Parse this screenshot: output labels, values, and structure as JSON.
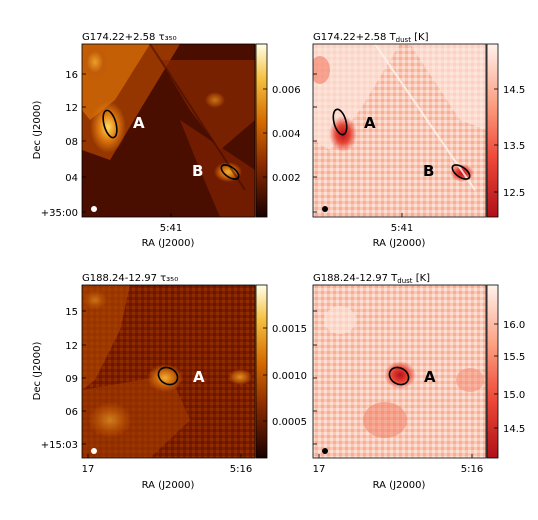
{
  "panels": [
    {
      "title": "G174.22+2.58 τ₃₅₀",
      "ylabel": "Dec (J2000)",
      "xlabel": "RA (J2000)",
      "yticks": [
        "16",
        "12",
        "08",
        "04",
        "+35:00"
      ],
      "xticks": [
        "5:41"
      ],
      "colorbar_ticks": [
        "0.006",
        "0.004",
        "0.002"
      ],
      "colormap": "afmhot",
      "labels": [
        "A",
        "B"
      ]
    },
    {
      "title": "G174.22+2.58 T",
      "title_sub": "dust",
      "title_unit": " [K]",
      "xlabel": "RA (J2000)",
      "xticks": [
        "5:41"
      ],
      "colorbar_ticks": [
        "14.5",
        "13.5",
        "12.5"
      ],
      "colormap": "reds",
      "labels": [
        "A",
        "B"
      ]
    },
    {
      "title": "G188.24-12.97 τ₃₅₀",
      "ylabel": "Dec (J2000)",
      "xlabel": "RA (J2000)",
      "yticks": [
        "15",
        "12",
        "09",
        "06",
        "+15:03"
      ],
      "xticks": [
        "17",
        "5:16"
      ],
      "colorbar_ticks": [
        "0.0015",
        "0.0010",
        "0.0005"
      ],
      "colormap": "afmhot",
      "labels": [
        "A"
      ]
    },
    {
      "title": "G188.24-12.97 T",
      "title_sub": "dust",
      "title_unit": " [K]",
      "xlabel": "RA (J2000)",
      "xticks": [
        "17",
        "5:16"
      ],
      "colorbar_ticks": [
        "16.0",
        "15.5",
        "15.0",
        "14.5"
      ],
      "colormap": "reds",
      "labels": [
        "A"
      ]
    }
  ],
  "colors": {
    "ellipse": "#000000",
    "beam_dark": "#ffffff",
    "beam_light": "#000000"
  }
}
